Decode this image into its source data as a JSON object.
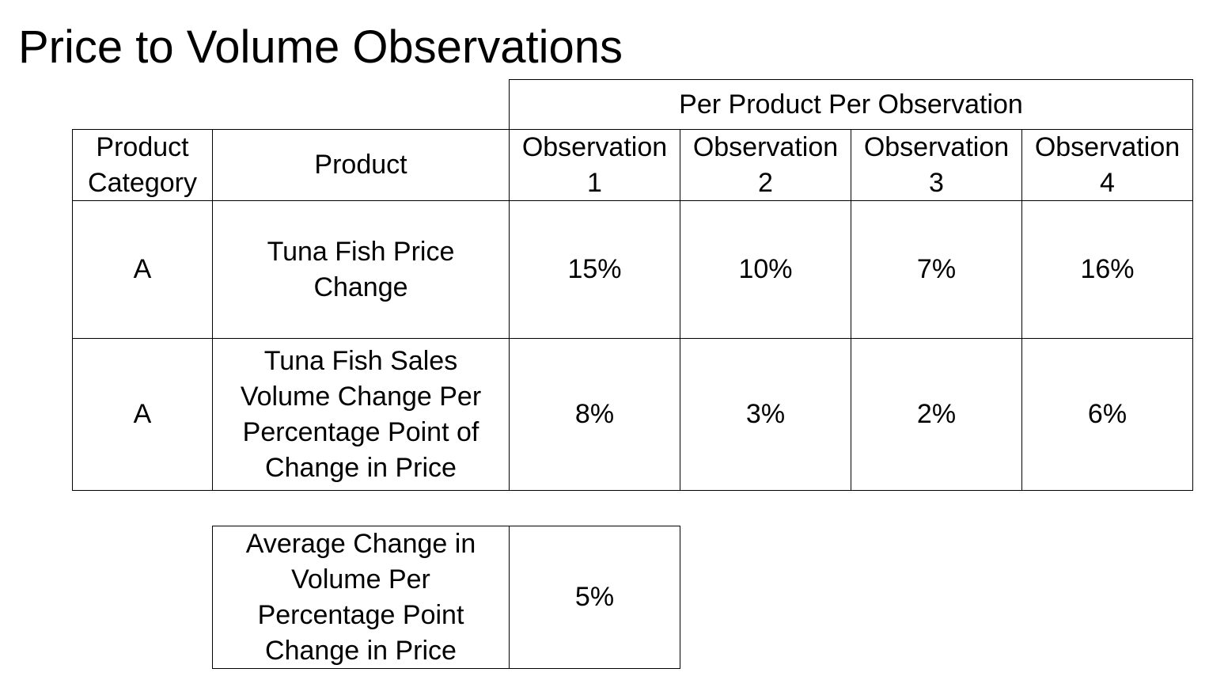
{
  "title": "Price to Volume Observations",
  "main_table": {
    "group_header": "Per Product Per Observation",
    "headers": {
      "category": "Product\nCategory",
      "product": "Product",
      "observations": [
        "Observation\n1",
        "Observation\n2",
        "Observation\n3",
        "Observation\n4"
      ]
    },
    "rows": [
      {
        "category": "A",
        "product": "Tuna Fish Price\nChange",
        "values": [
          "15%",
          "10%",
          "7%",
          "16%"
        ]
      },
      {
        "category": "A",
        "product": "Tuna Fish Sales\nVolume Change Per\nPercentage Point of\nChange in Price",
        "values": [
          "8%",
          "3%",
          "2%",
          "6%"
        ]
      }
    ]
  },
  "summary_table": {
    "label": "Average Change in\nVolume Per\nPercentage Point\nChange in Price",
    "value": "5%"
  }
}
